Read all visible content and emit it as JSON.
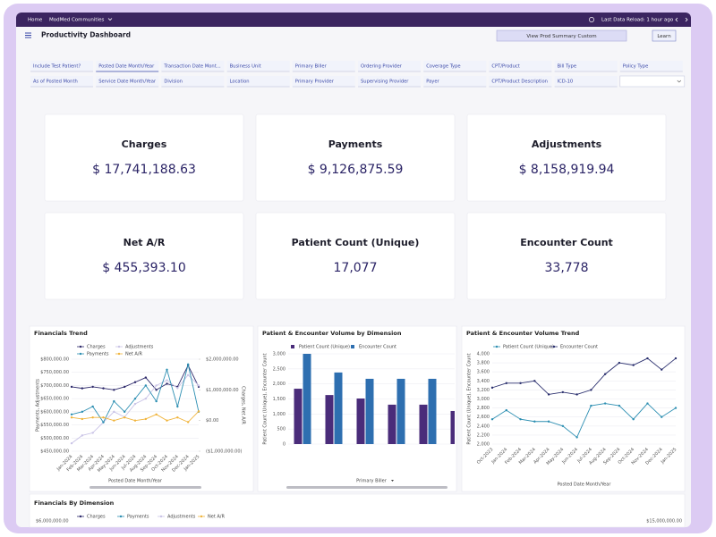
{
  "top_bar": {
    "home": "Home",
    "org": "ModMed Communities",
    "reload": "Last Data Reload: 1 hour ago"
  },
  "header": {
    "title": "Productivity Dashboard",
    "button": "View Prod Summary Custom",
    "learn": "Learn"
  },
  "filters": [
    [
      "Include Test Patient?",
      "Posted Date Month/Year",
      "Transaction Date Mont...",
      "Business Unit",
      "Primary Biller",
      "Ordering Provider",
      "Coverage Type",
      "CPT/Product",
      "Bill Type",
      "Policy Type"
    ],
    [
      "As of Posted Month",
      "Service Date Month/Year",
      "Division",
      "Location",
      "Primary Provider",
      "Supervising Provider",
      "Payer",
      "CPT/Product Description",
      "ICD-10"
    ]
  ],
  "kpis": [
    {
      "label": "Charges",
      "value": "$ 17,741,188.63"
    },
    {
      "label": "Payments",
      "value": "$ 9,126,875.59"
    },
    {
      "label": "Adjustments",
      "value": "$ 8,158,919.94"
    },
    {
      "label": "Net A/R",
      "value": "$ 455,393.10"
    },
    {
      "label": "Patient Count (Unique)",
      "value": "17,077"
    },
    {
      "label": "Encounter Count",
      "value": "33,778"
    }
  ],
  "chart_data": [
    {
      "type": "line",
      "title": "Financials Trend",
      "x_label": "Posted Date Month/Year",
      "y_label": "Payments, Adjustments",
      "y2_label": "Charges, Net A/R",
      "categories": [
        "Jan-2024",
        "Feb-2024",
        "Mar-2024",
        "Apr-2024",
        "May-2024",
        "Jun-2024",
        "Jul-2024",
        "Aug-2024",
        "Sep-2024",
        "Oct-2024",
        "Nov-2024",
        "Dec-2024",
        "Jan-2025"
      ],
      "series": [
        {
          "name": "Charges",
          "color": "#2e2a6b",
          "axis": "y2",
          "values": [
            1100000,
            1050000,
            1100000,
            1050000,
            1000000,
            1100000,
            1250000,
            1400000,
            1000000,
            1200000,
            1100000,
            1800000,
            1100000
          ]
        },
        {
          "name": "Adjustments",
          "color": "#c9c3e6",
          "values": [
            480000,
            510000,
            520000,
            560000,
            600000,
            580000,
            630000,
            650000,
            700000,
            720000,
            690000,
            740000,
            700000
          ]
        },
        {
          "name": "Payments",
          "color": "#2d8fb2",
          "values": [
            590000,
            600000,
            620000,
            560000,
            640000,
            600000,
            650000,
            700000,
            640000,
            760000,
            620000,
            780000,
            600000
          ]
        },
        {
          "name": "Net A/R",
          "color": "#f0b43c",
          "axis": "y2",
          "values": [
            100000,
            50000,
            100000,
            100000,
            0,
            100000,
            0,
            50000,
            200000,
            0,
            100000,
            -50000,
            300000
          ]
        }
      ],
      "ylim": [
        450000,
        800000
      ],
      "yticks": [
        {
          "value": 450000,
          "label": "$450,000.00"
        },
        {
          "value": 500000,
          "label": "$500,000.00"
        },
        {
          "value": 550000,
          "label": "$550,000.00"
        },
        {
          "value": 600000,
          "label": "$600,000.00"
        },
        {
          "value": 650000,
          "label": "$650,000.00"
        },
        {
          "value": 700000,
          "label": "$700,000.00"
        },
        {
          "value": 750000,
          "label": "$750,000.00"
        },
        {
          "value": 800000,
          "label": "$800,000.00"
        }
      ],
      "y2lim": [
        -1000000,
        2000000
      ],
      "y2ticks": [
        {
          "value": -1000000,
          "label": "($1,000,000.00)"
        },
        {
          "value": 0,
          "label": "$0.00"
        },
        {
          "value": 1000000,
          "label": "$1,000,000.00"
        },
        {
          "value": 2000000,
          "label": "$2,000,000.00"
        }
      ],
      "grid": true
    },
    {
      "type": "bar",
      "title": "Patient & Encounter Volume by Dimension",
      "x_label": "Primary Biller",
      "y_label": "Patient Count (Unique), Encounter Count",
      "categories": [
        null,
        null,
        null,
        null,
        null,
        null
      ],
      "series": [
        {
          "name": "Patient Count (Unique)",
          "color": "#4a2c7a",
          "values": [
            1840,
            1630,
            1515,
            1310,
            1310,
            1100
          ]
        },
        {
          "name": "Encounter Count",
          "color": "#2e6fb0",
          "values": [
            3000,
            2380,
            2170,
            2170,
            2170,
            2050
          ]
        }
      ],
      "ylim": [
        0,
        3000
      ],
      "yticks": [
        0,
        500,
        {
          "value": 1000,
          "label": "1,000"
        },
        {
          "value": 1500,
          "label": "1,500"
        },
        {
          "value": 2000,
          "label": "2,000"
        },
        {
          "value": 2500,
          "label": "2,500"
        },
        {
          "value": 3000,
          "label": "3,000"
        }
      ],
      "grid": true
    },
    {
      "type": "line",
      "title": "Patient & Encounter Volume Trend",
      "x_label": "Posted Date Month/Year",
      "y_label": "Patient Count (Unique), Encounter Count",
      "categories": [
        "Oct-2023",
        "Jan-2024",
        "Feb-2024",
        "Mar-2024",
        "Apr-2024",
        "May-2024",
        "Jun-2024",
        "Jul-2024",
        "Aug-2024",
        "Sep-2024",
        "Oct-2024",
        "Nov-2024",
        "Dec-2024",
        "Jan-2025"
      ],
      "series": [
        {
          "name": "Patient Count (Unique)",
          "color": "#2d8fb2",
          "values": [
            2550,
            2750,
            2550,
            2500,
            2500,
            2400,
            2150,
            2850,
            2900,
            2850,
            2550,
            2900,
            2600,
            2800
          ]
        },
        {
          "name": "Encounter Count",
          "color": "#2a2f6e",
          "values": [
            3250,
            3350,
            3350,
            3400,
            3100,
            3150,
            3100,
            3200,
            3550,
            3800,
            3750,
            3900,
            3650,
            3900
          ]
        }
      ],
      "ylim": [
        2000,
        4000
      ],
      "yticks": [
        {
          "value": 2000,
          "label": "2,000"
        },
        {
          "value": 2200,
          "label": "2,200"
        },
        {
          "value": 2400,
          "label": "2,400"
        },
        {
          "value": 2600,
          "label": "2,600"
        },
        {
          "value": 2800,
          "label": "2,800"
        },
        {
          "value": 3000,
          "label": "3,000"
        },
        {
          "value": 3200,
          "label": "3,200"
        },
        {
          "value": 3400,
          "label": "3,400"
        },
        {
          "value": 3600,
          "label": "3,600"
        },
        {
          "value": 3800,
          "label": "3,800"
        },
        {
          "value": 4000,
          "label": "4,000"
        }
      ],
      "grid": true
    }
  ],
  "bottom_panel": {
    "title": "Financials By Dimension",
    "legend": [
      "Charges",
      "Payments",
      "Adjustments",
      "Net A/R"
    ],
    "left_axis_label": "$6,000,000.00",
    "right_axis_label": "$15,000,000.00"
  }
}
